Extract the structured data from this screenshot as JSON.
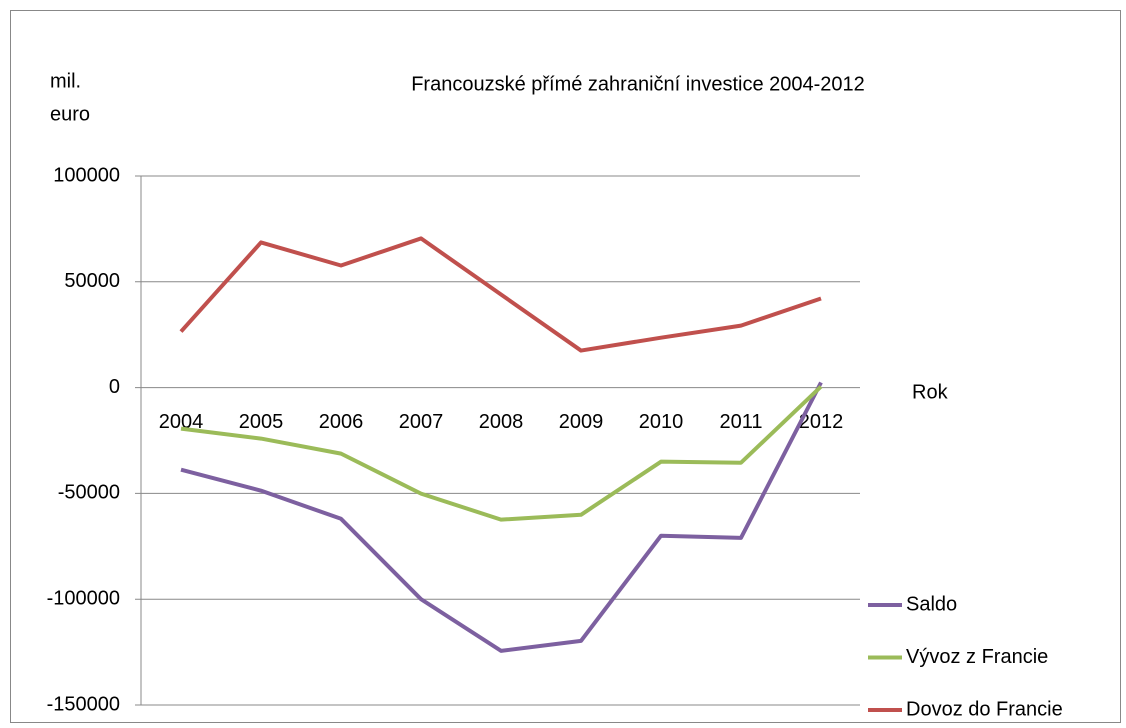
{
  "chart_data": {
    "type": "line",
    "title": "Francouzské přímé zahraniční investice 2004-2012",
    "ylabel": [
      "mil.",
      "euro"
    ],
    "xlabel": "Rok",
    "categories": [
      "2004",
      "2005",
      "2006",
      "2007",
      "2008",
      "2009",
      "2010",
      "2011",
      "2012"
    ],
    "series": [
      {
        "name": "Saldo",
        "color": "#7d60a0",
        "values": [
          -38800,
          -48700,
          -62000,
          -100000,
          -124400,
          -119700,
          -70000,
          -71000,
          2400
        ]
      },
      {
        "name": "Vývoz z Francie",
        "color": "#9bbb59",
        "values": [
          -19400,
          -24100,
          -31200,
          -50100,
          -62400,
          -60100,
          -35000,
          -35500,
          500
        ]
      },
      {
        "name": "Dovoz do Francie",
        "color": "#c0504d",
        "values": [
          26500,
          68600,
          57700,
          70500,
          44000,
          17500,
          23600,
          29300,
          42100
        ]
      }
    ],
    "ylim": [
      -150000,
      100000
    ],
    "yticks": [
      -150000,
      -100000,
      -50000,
      0,
      50000,
      100000
    ],
    "grid": true,
    "legend": "right"
  }
}
